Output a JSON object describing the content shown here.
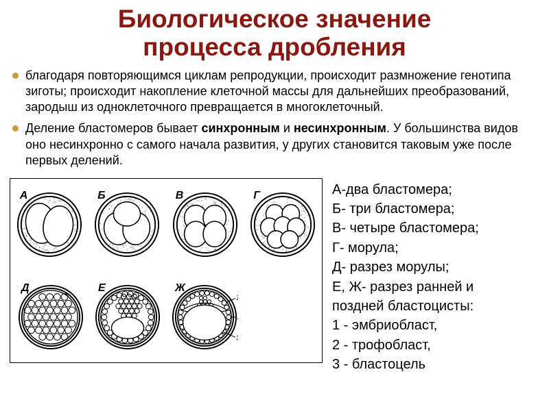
{
  "colors": {
    "title": "#8a1810",
    "bullet_dot": "#c99a3c",
    "text": "#000000",
    "figure_border": "#000000",
    "cell_stroke": "#000000",
    "cell_fill": "#ffffff",
    "stipple": "#555555"
  },
  "fonts": {
    "title_size": 37,
    "bullet_size": 18,
    "legend_size": 20,
    "cell_label_size": 16
  },
  "layout": {
    "figure_width": 456,
    "figure_height": 270,
    "cell_diameter": 98,
    "row_gap": 18
  },
  "title": {
    "line1": "Биологическое значение",
    "line2": "процесса дробления"
  },
  "bullets": [
    {
      "pre": "благодаря повторяющимся циклам репродукции, происходит размножение генотипа зиготы; происходит накопление клеточной массы для дальнейших преобразований, зародыш из одноклеточного превращается в многоклеточный.",
      "bold1": "",
      "mid": "",
      "bold2": "",
      "post": ""
    },
    {
      "pre": "Деление бластомеров бывает ",
      "bold1": "синхронным",
      "mid": " и ",
      "bold2": "несинхронным",
      "post": ". У большинства видов оно несинхронно с самого начала развития, у других становится таковым уже после первых делений."
    }
  ],
  "cells": {
    "top": [
      "А",
      "Б",
      "В",
      "Г"
    ],
    "bottom": [
      "Д",
      "Е",
      "Ж"
    ]
  },
  "legend": [
    "А-два бластомера;",
    "Б- три бластомера;",
    "В- четыре бластомера;",
    "Г- морула;",
    "Д- разрез морулы;",
    "Е, Ж- разрез ранней и",
    "поздней бластоцисты:",
    "1 - эмбриобласт,",
    "2 - трофобласт,",
    "3 - бластоцель"
  ]
}
